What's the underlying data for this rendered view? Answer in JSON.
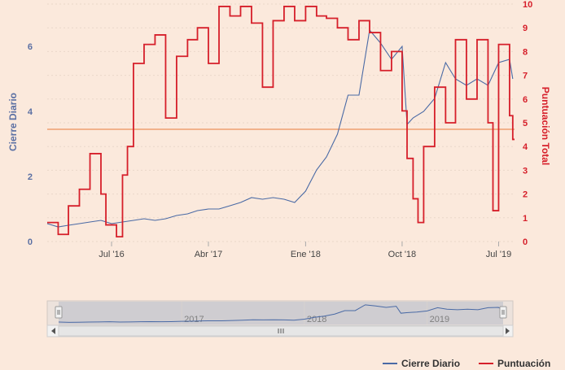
{
  "chart_data": {
    "type": "line",
    "xlabel": "",
    "y_left_label": "Cierre Diario",
    "y_right_label": "Puntuación Total",
    "y_left_ticks": [
      "0",
      "2",
      "4",
      "6"
    ],
    "y_right_ticks": [
      "0",
      "1",
      "2",
      "3",
      "4",
      "5",
      "6",
      "7",
      "8",
      "9",
      "10"
    ],
    "x_ticks": [
      "Jul '16",
      "Abr '17",
      "Ene '18",
      "Oct '18",
      "Jul '19"
    ],
    "x_range": [
      "2016-01-01",
      "2019-08-15"
    ],
    "y_left_range": [
      0,
      7.3
    ],
    "y_right_range": [
      0,
      10
    ],
    "reference_line": {
      "axis": "left",
      "value": 3.45,
      "color": "#f0a070"
    },
    "navigator_labels": [
      "2017",
      "2018",
      "2019"
    ],
    "legend": {
      "placement": "bottom-right",
      "items": [
        "Cierre Diario",
        "Puntuación"
      ]
    },
    "series": [
      {
        "name": "Cierre Diario",
        "axis": "left",
        "color": "#4a6aa5",
        "points": [
          [
            "2016-01-01",
            0.55
          ],
          [
            "2016-02-01",
            0.45
          ],
          [
            "2016-03-01",
            0.5
          ],
          [
            "2016-04-01",
            0.55
          ],
          [
            "2016-05-01",
            0.6
          ],
          [
            "2016-06-01",
            0.65
          ],
          [
            "2016-07-01",
            0.55
          ],
          [
            "2016-08-01",
            0.6
          ],
          [
            "2016-09-01",
            0.65
          ],
          [
            "2016-10-01",
            0.7
          ],
          [
            "2016-11-01",
            0.65
          ],
          [
            "2016-12-01",
            0.7
          ],
          [
            "2017-01-01",
            0.8
          ],
          [
            "2017-02-01",
            0.85
          ],
          [
            "2017-03-01",
            0.95
          ],
          [
            "2017-04-01",
            1.0
          ],
          [
            "2017-05-01",
            1.0
          ],
          [
            "2017-06-01",
            1.1
          ],
          [
            "2017-07-01",
            1.2
          ],
          [
            "2017-08-01",
            1.35
          ],
          [
            "2017-09-01",
            1.3
          ],
          [
            "2017-10-01",
            1.35
          ],
          [
            "2017-11-01",
            1.3
          ],
          [
            "2017-12-01",
            1.2
          ],
          [
            "2018-01-01",
            1.55
          ],
          [
            "2018-02-01",
            2.2
          ],
          [
            "2018-03-01",
            2.6
          ],
          [
            "2018-04-01",
            3.3
          ],
          [
            "2018-05-01",
            4.5
          ],
          [
            "2018-06-01",
            4.5
          ],
          [
            "2018-07-01",
            6.5
          ],
          [
            "2018-08-01",
            6.1
          ],
          [
            "2018-09-01",
            5.6
          ],
          [
            "2018-10-01",
            6.0
          ],
          [
            "2018-10-15",
            3.6
          ],
          [
            "2018-11-01",
            3.8
          ],
          [
            "2018-12-01",
            4.0
          ],
          [
            "2019-01-01",
            4.4
          ],
          [
            "2019-02-01",
            5.5
          ],
          [
            "2019-03-01",
            5.0
          ],
          [
            "2019-04-01",
            4.8
          ],
          [
            "2019-05-01",
            5.0
          ],
          [
            "2019-06-01",
            4.8
          ],
          [
            "2019-07-01",
            5.5
          ],
          [
            "2019-08-01",
            5.6
          ],
          [
            "2019-08-10",
            5.0
          ]
        ]
      },
      {
        "name": "Puntuación",
        "axis": "right",
        "color": "#d61f2a",
        "points": [
          [
            "2016-01-01",
            0.8
          ],
          [
            "2016-02-01",
            0.3
          ],
          [
            "2016-03-01",
            1.5
          ],
          [
            "2016-04-01",
            2.2
          ],
          [
            "2016-05-01",
            3.7
          ],
          [
            "2016-06-01",
            2.0
          ],
          [
            "2016-06-15",
            0.7
          ],
          [
            "2016-07-01",
            0.7
          ],
          [
            "2016-07-15",
            0.2
          ],
          [
            "2016-08-01",
            2.8
          ],
          [
            "2016-08-15",
            4.0
          ],
          [
            "2016-09-01",
            7.5
          ],
          [
            "2016-10-01",
            8.3
          ],
          [
            "2016-11-01",
            8.7
          ],
          [
            "2016-12-01",
            5.2
          ],
          [
            "2017-01-01",
            7.8
          ],
          [
            "2017-02-01",
            8.5
          ],
          [
            "2017-03-01",
            9.0
          ],
          [
            "2017-04-01",
            7.5
          ],
          [
            "2017-05-01",
            9.9
          ],
          [
            "2017-06-01",
            9.5
          ],
          [
            "2017-07-01",
            9.9
          ],
          [
            "2017-08-01",
            9.2
          ],
          [
            "2017-09-01",
            6.5
          ],
          [
            "2017-10-01",
            9.3
          ],
          [
            "2017-11-01",
            9.9
          ],
          [
            "2017-12-01",
            9.3
          ],
          [
            "2018-01-01",
            9.9
          ],
          [
            "2018-02-01",
            9.5
          ],
          [
            "2018-03-01",
            9.4
          ],
          [
            "2018-04-01",
            9.0
          ],
          [
            "2018-05-01",
            8.5
          ],
          [
            "2018-06-01",
            9.3
          ],
          [
            "2018-07-01",
            8.8
          ],
          [
            "2018-08-01",
            7.2
          ],
          [
            "2018-09-01",
            8.0
          ],
          [
            "2018-10-01",
            5.5
          ],
          [
            "2018-10-15",
            3.5
          ],
          [
            "2018-11-01",
            1.8
          ],
          [
            "2018-11-15",
            0.8
          ],
          [
            "2018-12-01",
            4.0
          ],
          [
            "2019-01-01",
            6.5
          ],
          [
            "2019-02-01",
            5.0
          ],
          [
            "2019-03-01",
            8.5
          ],
          [
            "2019-04-01",
            6.0
          ],
          [
            "2019-05-01",
            8.5
          ],
          [
            "2019-06-01",
            5.0
          ],
          [
            "2019-06-15",
            1.3
          ],
          [
            "2019-07-01",
            8.3
          ],
          [
            "2019-08-01",
            5.3
          ],
          [
            "2019-08-10",
            4.3
          ]
        ]
      }
    ]
  },
  "navigator": {
    "scroll_icon": "grip-icon",
    "left_arrow_icon": "arrow-left-icon",
    "right_arrow_icon": "arrow-right-icon"
  }
}
